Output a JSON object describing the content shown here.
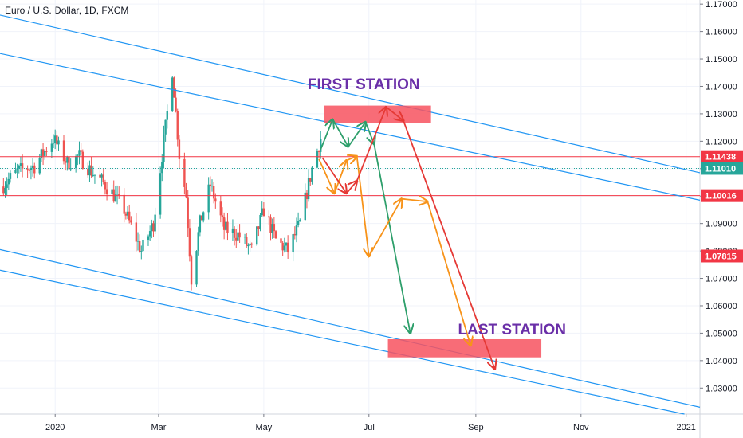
{
  "header": {
    "title": "Euro / U.S. Dollar, 1D, FXCM"
  },
  "colors": {
    "up": "#26a69a",
    "down": "#ef5350",
    "channel": "#2196f3",
    "level": "#f23645",
    "zone": "#f7525f",
    "arrow_green": "#2e9f6b",
    "arrow_orange": "#f7931a",
    "arrow_red": "#e53935",
    "annotation": "#6a2fa8",
    "grid": "#f0f3fa"
  },
  "chart_data": {
    "type": "candlestick",
    "symbol": "Euro / U.S. Dollar",
    "interval": "1D",
    "source": "FXCM",
    "ylim": [
      1.0205,
      1.1715
    ],
    "y_ticks": [
      "1.17000",
      "1.16000",
      "1.15000",
      "1.14000",
      "1.13000",
      "1.12000",
      "1.11000",
      "1.10000",
      "1.09000",
      "1.08000",
      "1.07000",
      "1.06000",
      "1.05000",
      "1.04000",
      "1.03000"
    ],
    "x_ticks": [
      {
        "label": "2020",
        "date": "2020-01-01"
      },
      {
        "label": "Mar",
        "date": "2020-03-01"
      },
      {
        "label": "May",
        "date": "2020-05-01"
      },
      {
        "label": "Jul",
        "date": "2020-07-01"
      },
      {
        "label": "Sep",
        "date": "2020-09-01"
      },
      {
        "label": "Nov",
        "date": "2020-11-01"
      },
      {
        "label": "2021",
        "date": "2021-01-01"
      }
    ],
    "xlim": [
      "2019-11-30",
      "2021-01-09"
    ],
    "price_path": [
      [
        "2019-12-01",
        1.1035
      ],
      [
        "2019-12-10",
        1.109
      ],
      [
        "2019-12-20",
        1.111
      ],
      [
        "2019-12-31",
        1.121
      ],
      [
        "2020-01-08",
        1.112
      ],
      [
        "2020-01-15",
        1.1145
      ],
      [
        "2020-01-22",
        1.109
      ],
      [
        "2020-02-01",
        1.103
      ],
      [
        "2020-02-10",
        1.095
      ],
      [
        "2020-02-20",
        1.08
      ],
      [
        "2020-02-27",
        1.09
      ],
      [
        "2020-03-05",
        1.125
      ],
      [
        "2020-03-09",
        1.146
      ],
      [
        "2020-03-13",
        1.115
      ],
      [
        "2020-03-17",
        1.1
      ],
      [
        "2020-03-20",
        1.07
      ],
      [
        "2020-03-25",
        1.09
      ],
      [
        "2020-03-31",
        1.104
      ],
      [
        "2020-04-08",
        1.088
      ],
      [
        "2020-04-16",
        1.086
      ],
      [
        "2020-04-24",
        1.08
      ],
      [
        "2020-05-01",
        1.095
      ],
      [
        "2020-05-08",
        1.084
      ],
      [
        "2020-05-15",
        1.08
      ],
      [
        "2020-05-22",
        1.09
      ],
      [
        "2020-05-29",
        1.11
      ],
      [
        "2020-06-03",
        1.121
      ]
    ],
    "horizontal_levels": [
      {
        "value": 1.11438,
        "label": "1.11438"
      },
      {
        "value": 1.10016,
        "label": "1.10016"
      },
      {
        "value": 1.07815,
        "label": "1.07815"
      }
    ],
    "last_price": {
      "value": 1.1101,
      "label": "1.11010"
    },
    "channel_lines": [
      {
        "from": [
          "2019-11-30",
          1.166
        ],
        "to": [
          "2021-01-09",
          1.1085
        ]
      },
      {
        "from": [
          "2019-11-30",
          1.152
        ],
        "to": [
          "2021-01-09",
          1.0985
        ]
      },
      {
        "from": [
          "2019-11-30",
          1.0805
        ],
        "to": [
          "2021-01-09",
          1.023
        ]
      },
      {
        "from": [
          "2019-11-30",
          1.073
        ],
        "to": [
          "2020-12-31",
          1.0205
        ]
      }
    ],
    "zones": [
      {
        "name": "first-station",
        "x": [
          "2020-06-05",
          "2020-08-06"
        ],
        "y": [
          1.1265,
          1.133
        ]
      },
      {
        "name": "last-station",
        "x": [
          "2020-07-12",
          "2020-10-09"
        ],
        "y": [
          1.0412,
          1.0478
        ]
      }
    ],
    "arrows": [
      {
        "color": "arrow_green",
        "points": [
          [
            "2020-06-03",
            1.117
          ],
          [
            "2020-06-10",
            1.128
          ],
          [
            "2020-06-19",
            1.118
          ],
          [
            "2020-06-29",
            1.127
          ],
          [
            "2020-07-04",
            1.119
          ],
          [
            "2020-07-25",
            1.05
          ]
        ]
      },
      {
        "color": "arrow_orange",
        "points": [
          [
            "2020-06-02",
            1.1135
          ],
          [
            "2020-06-11",
            1.101
          ],
          [
            "2020-06-18",
            1.113
          ],
          [
            "2020-06-24",
            1.1145
          ],
          [
            "2020-07-01",
            1.078
          ],
          [
            "2020-07-20",
            1.099
          ],
          [
            "2020-08-04",
            1.098
          ],
          [
            "2020-08-29",
            1.0455
          ]
        ]
      },
      {
        "color": "arrow_red",
        "points": [
          [
            "2020-06-04",
            1.114
          ],
          [
            "2020-06-18",
            1.101
          ],
          [
            "2020-06-24",
            1.1055
          ],
          [
            "2020-07-11",
            1.1325
          ],
          [
            "2020-07-21",
            1.1275
          ],
          [
            "2020-09-12",
            1.037
          ]
        ]
      }
    ],
    "annotations": [
      {
        "text": "FIRST STATION",
        "at": [
          "2020-06-28",
          1.139
        ]
      },
      {
        "text": "LAST STATION",
        "at": [
          "2020-09-22",
          1.0495
        ]
      }
    ],
    "grid": true
  }
}
